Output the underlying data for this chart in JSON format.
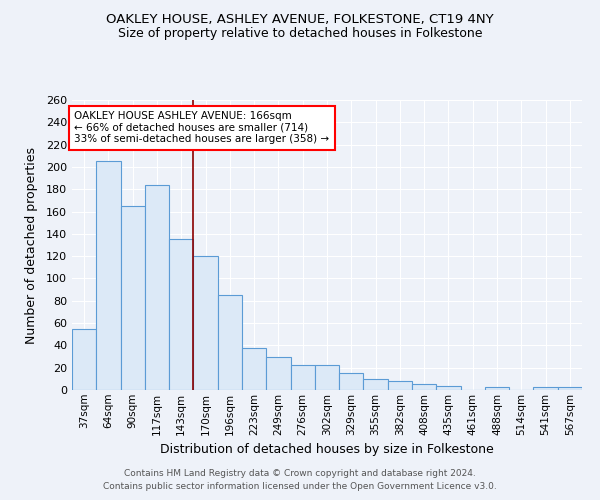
{
  "title1": "OAKLEY HOUSE, ASHLEY AVENUE, FOLKESTONE, CT19 4NY",
  "title2": "Size of property relative to detached houses in Folkestone",
  "xlabel": "Distribution of detached houses by size in Folkestone",
  "ylabel": "Number of detached properties",
  "categories": [
    "37sqm",
    "64sqm",
    "90sqm",
    "117sqm",
    "143sqm",
    "170sqm",
    "196sqm",
    "223sqm",
    "249sqm",
    "276sqm",
    "302sqm",
    "329sqm",
    "355sqm",
    "382sqm",
    "408sqm",
    "435sqm",
    "461sqm",
    "488sqm",
    "514sqm",
    "541sqm",
    "567sqm"
  ],
  "values": [
    55,
    205,
    165,
    184,
    135,
    120,
    85,
    38,
    30,
    22,
    22,
    15,
    10,
    8,
    5,
    4,
    0,
    3,
    0,
    3,
    3
  ],
  "bar_color_fill": "#dce9f7",
  "bar_color_edge": "#5b9bd5",
  "ref_line_x": 4.5,
  "ref_line_color": "#8b0000",
  "annotation_text": "OAKLEY HOUSE ASHLEY AVENUE: 166sqm\n← 66% of detached houses are smaller (714)\n33% of semi-detached houses are larger (358) →",
  "annotation_box_color": "white",
  "annotation_box_edge": "red",
  "footer1": "Contains HM Land Registry data © Crown copyright and database right 2024.",
  "footer2": "Contains public sector information licensed under the Open Government Licence v3.0.",
  "bg_color": "#eef2f9",
  "grid_color": "#ffffff",
  "ylim": [
    0,
    260
  ],
  "yticks": [
    0,
    20,
    40,
    60,
    80,
    100,
    120,
    140,
    160,
    180,
    200,
    220,
    240,
    260
  ]
}
